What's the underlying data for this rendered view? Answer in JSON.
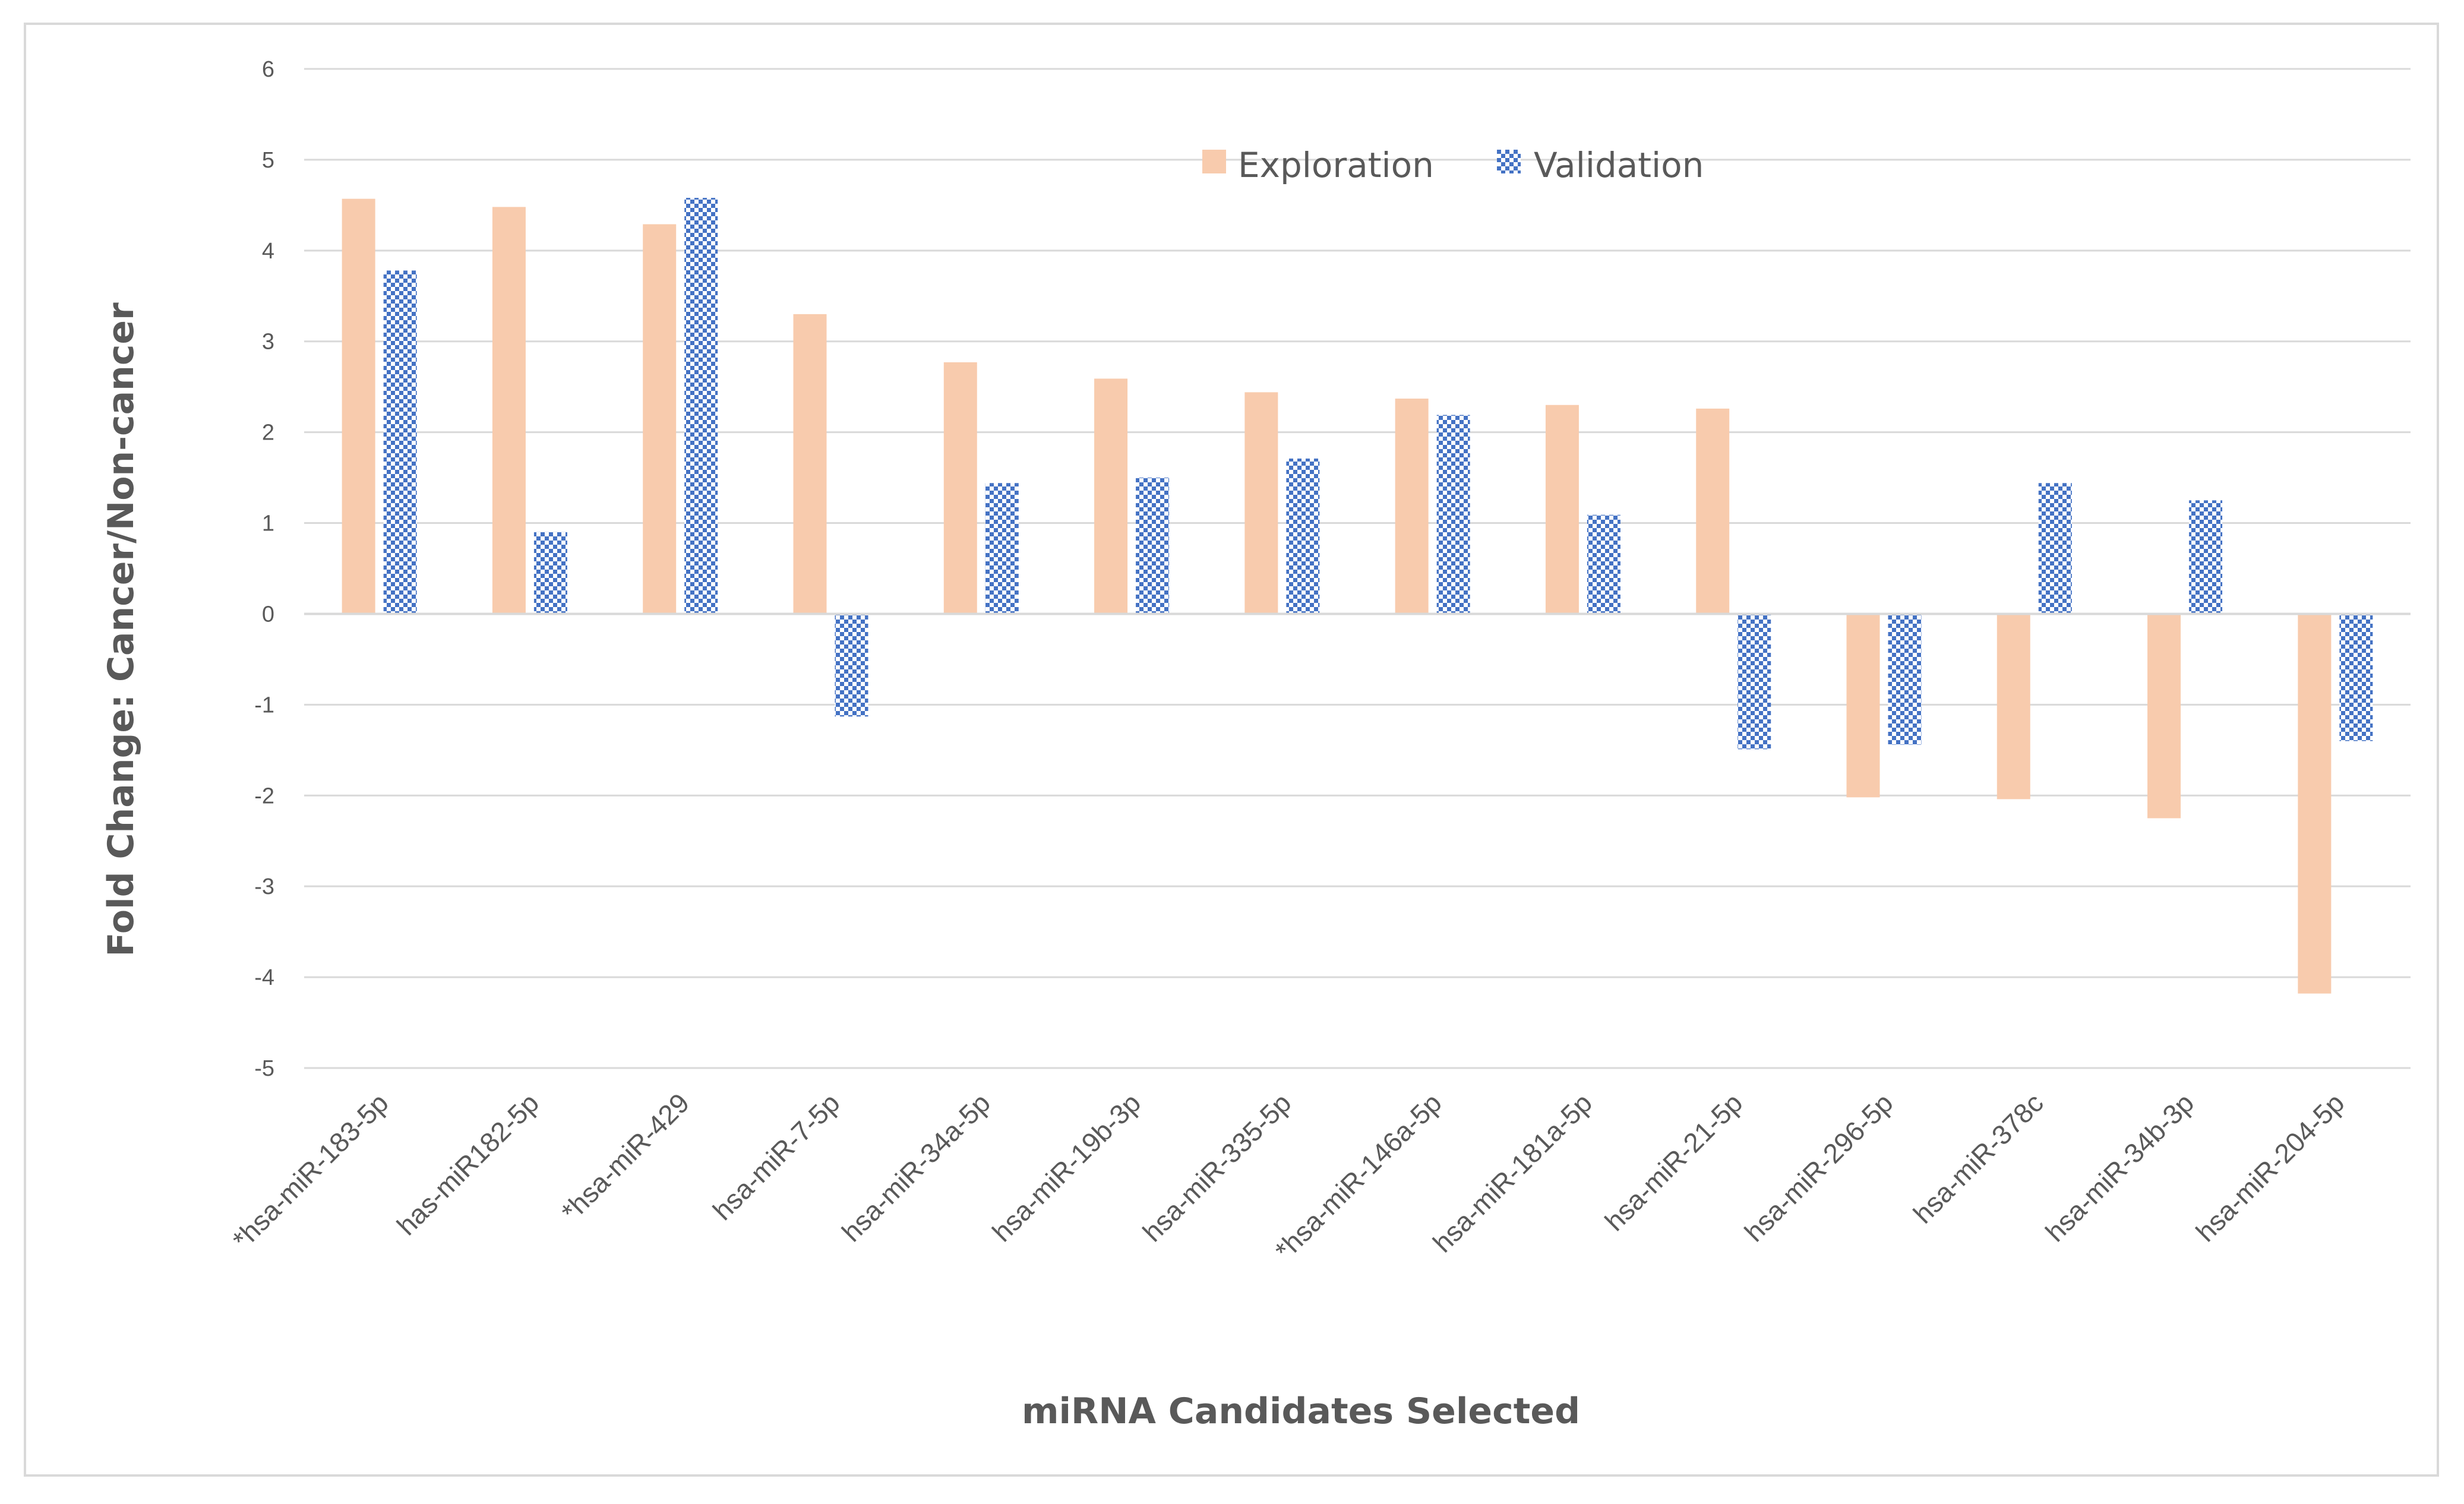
{
  "chart_data": {
    "type": "bar",
    "title": "",
    "xlabel": "miRNA Candidates Selected",
    "ylabel": "Fold Change: Cancer/Non-cancer",
    "ylim": [
      -5,
      6
    ],
    "yticks": [
      "6",
      "5",
      "4",
      "3",
      "2",
      "1",
      "0",
      "-1",
      "-2",
      "-3",
      "-4",
      "-5"
    ],
    "grid": true,
    "legend_position": "top-center",
    "categories": [
      "*hsa-miR-183-5p",
      "has-miR182-5p",
      "*hsa-miR-429",
      "hsa-miR-7-5p",
      "hsa-miR-34a-5p",
      "hsa-miR-19b-3p",
      "hsa-miR-335-5p",
      "*hsa-miR-146a-5p",
      "hsa-miR-181a-5p",
      "hsa-miR-21-5p",
      "hsa-miR-296-5p",
      "hsa-miR-378c",
      "hsa-miR-34b-3p",
      "hsa-miR-204-5p"
    ],
    "series": [
      {
        "name": "Exploration",
        "color": "#f8cbad",
        "pattern": "solid",
        "values": [
          4.57,
          4.48,
          4.29,
          3.3,
          2.77,
          2.59,
          2.44,
          2.37,
          2.3,
          2.26,
          -2.02,
          -2.04,
          -2.25,
          -4.18
        ]
      },
      {
        "name": "Validation",
        "color": "#4472c4",
        "pattern": "checker",
        "values": [
          3.78,
          0.9,
          4.58,
          -1.13,
          1.44,
          1.5,
          1.71,
          2.19,
          1.09,
          -1.49,
          -1.44,
          1.44,
          1.25,
          -1.4
        ]
      }
    ]
  }
}
